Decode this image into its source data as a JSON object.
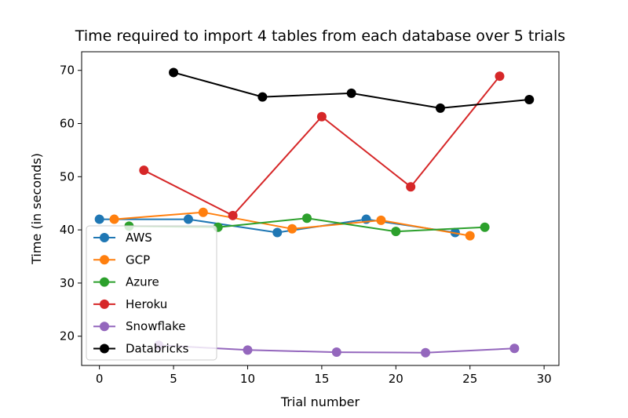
{
  "chart_data": {
    "type": "line",
    "title": "Time required to import 4 tables from each database over 5 trials",
    "xlabel": "Trial number",
    "ylabel": "Time (in seconds)",
    "xlim": [
      -1.2,
      31.0
    ],
    "ylim": [
      14.5,
      73.5
    ],
    "xticks": [
      0,
      5,
      10,
      15,
      20,
      25,
      30
    ],
    "yticks": [
      20,
      30,
      40,
      50,
      60,
      70
    ],
    "grid": false,
    "legend_placement": "lower-left",
    "series": [
      {
        "name": "AWS",
        "color": "#1f77b4",
        "x": [
          0,
          6,
          12,
          18,
          24
        ],
        "y": [
          42.0,
          42.0,
          39.5,
          42.0,
          39.5
        ]
      },
      {
        "name": "GCP",
        "color": "#ff7f0e",
        "x": [
          1,
          7,
          13,
          19,
          25
        ],
        "y": [
          42.0,
          43.3,
          40.2,
          41.8,
          38.9
        ]
      },
      {
        "name": "Azure",
        "color": "#2ca02c",
        "x": [
          2,
          8,
          14,
          20,
          26
        ],
        "y": [
          40.7,
          40.5,
          42.2,
          39.7,
          40.5
        ]
      },
      {
        "name": "Heroku",
        "color": "#d62728",
        "x": [
          3,
          9,
          15,
          21,
          27
        ],
        "y": [
          51.2,
          42.7,
          61.3,
          48.1,
          68.9
        ]
      },
      {
        "name": "Snowflake",
        "color": "#9467bd",
        "x": [
          4,
          10,
          16,
          22,
          28
        ],
        "y": [
          18.3,
          17.4,
          17.0,
          16.9,
          17.7
        ]
      },
      {
        "name": "Databricks",
        "color": "#000000",
        "x": [
          5,
          11,
          17,
          23,
          29
        ],
        "y": [
          69.6,
          65.0,
          65.7,
          62.9,
          64.5
        ]
      }
    ]
  }
}
